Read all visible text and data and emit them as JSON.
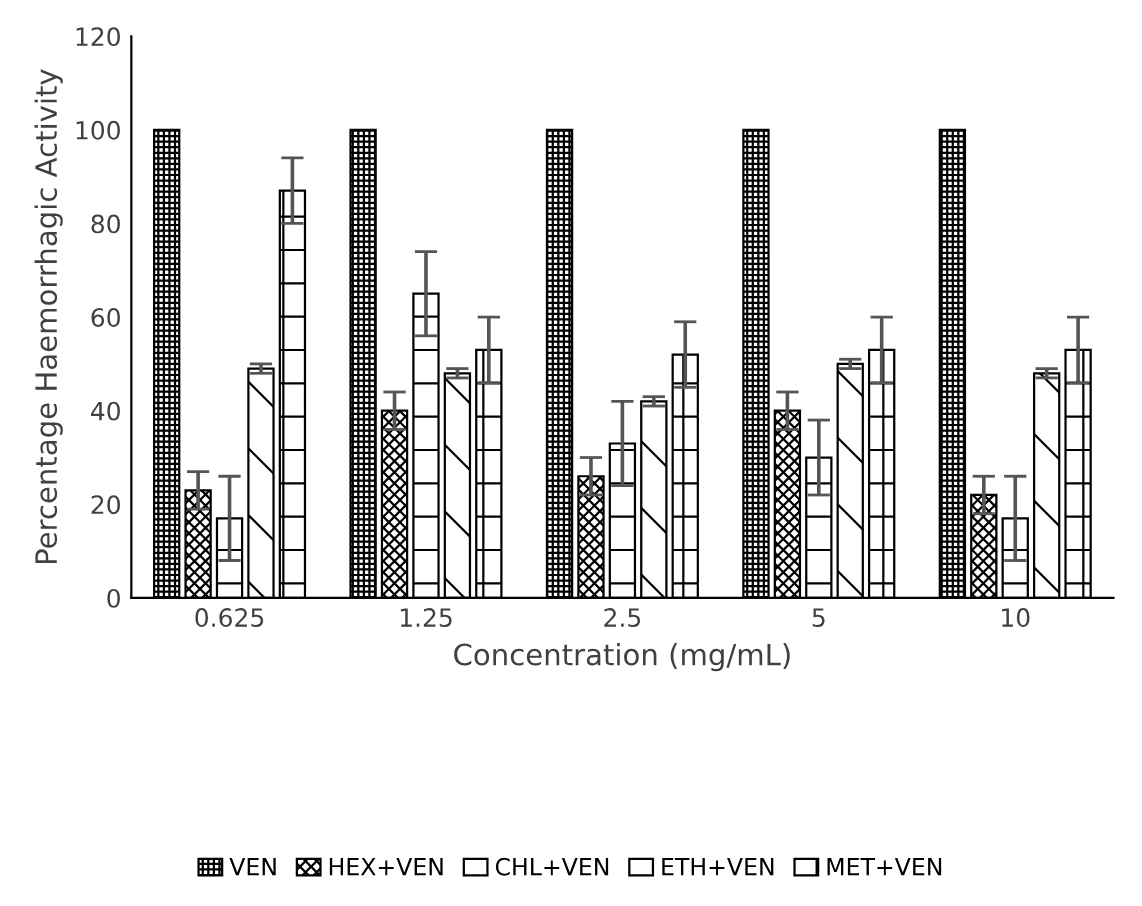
{
  "chart_data": {
    "type": "bar",
    "xlabel": "Concentration (mg/mL)",
    "ylabel": "Percentage Haemorrhagic Activity",
    "categories": [
      "0.625",
      "1.25",
      "2.5",
      "5",
      "10"
    ],
    "ylim": [
      0,
      120
    ],
    "yticks": [
      0,
      20,
      40,
      60,
      80,
      100,
      120
    ],
    "grid": false,
    "legend": "bottom",
    "series": [
      {
        "name": "VEN",
        "color": "#000000",
        "values": [
          100,
          100,
          100,
          100,
          100
        ]
      },
      {
        "name": "HEX+VEN",
        "color": "#000000",
        "values": [
          23,
          40,
          26,
          40,
          22
        ],
        "errors": [
          4,
          4,
          4,
          4,
          4
        ]
      },
      {
        "name": "CHL+VEN",
        "color": "#000000",
        "values": [
          17,
          65,
          33,
          30,
          17
        ],
        "errors": [
          9,
          9,
          9,
          8,
          9
        ]
      },
      {
        "name": "ETH+VEN",
        "color": "#000000",
        "values": [
          49,
          48,
          42,
          50,
          48
        ],
        "errors": [
          1,
          1,
          1,
          1,
          1
        ]
      },
      {
        "name": "MET+VEN",
        "color": "#000000",
        "values": [
          87,
          53,
          52,
          53,
          53
        ],
        "errors": [
          7,
          7,
          7,
          7,
          7
        ]
      }
    ]
  }
}
